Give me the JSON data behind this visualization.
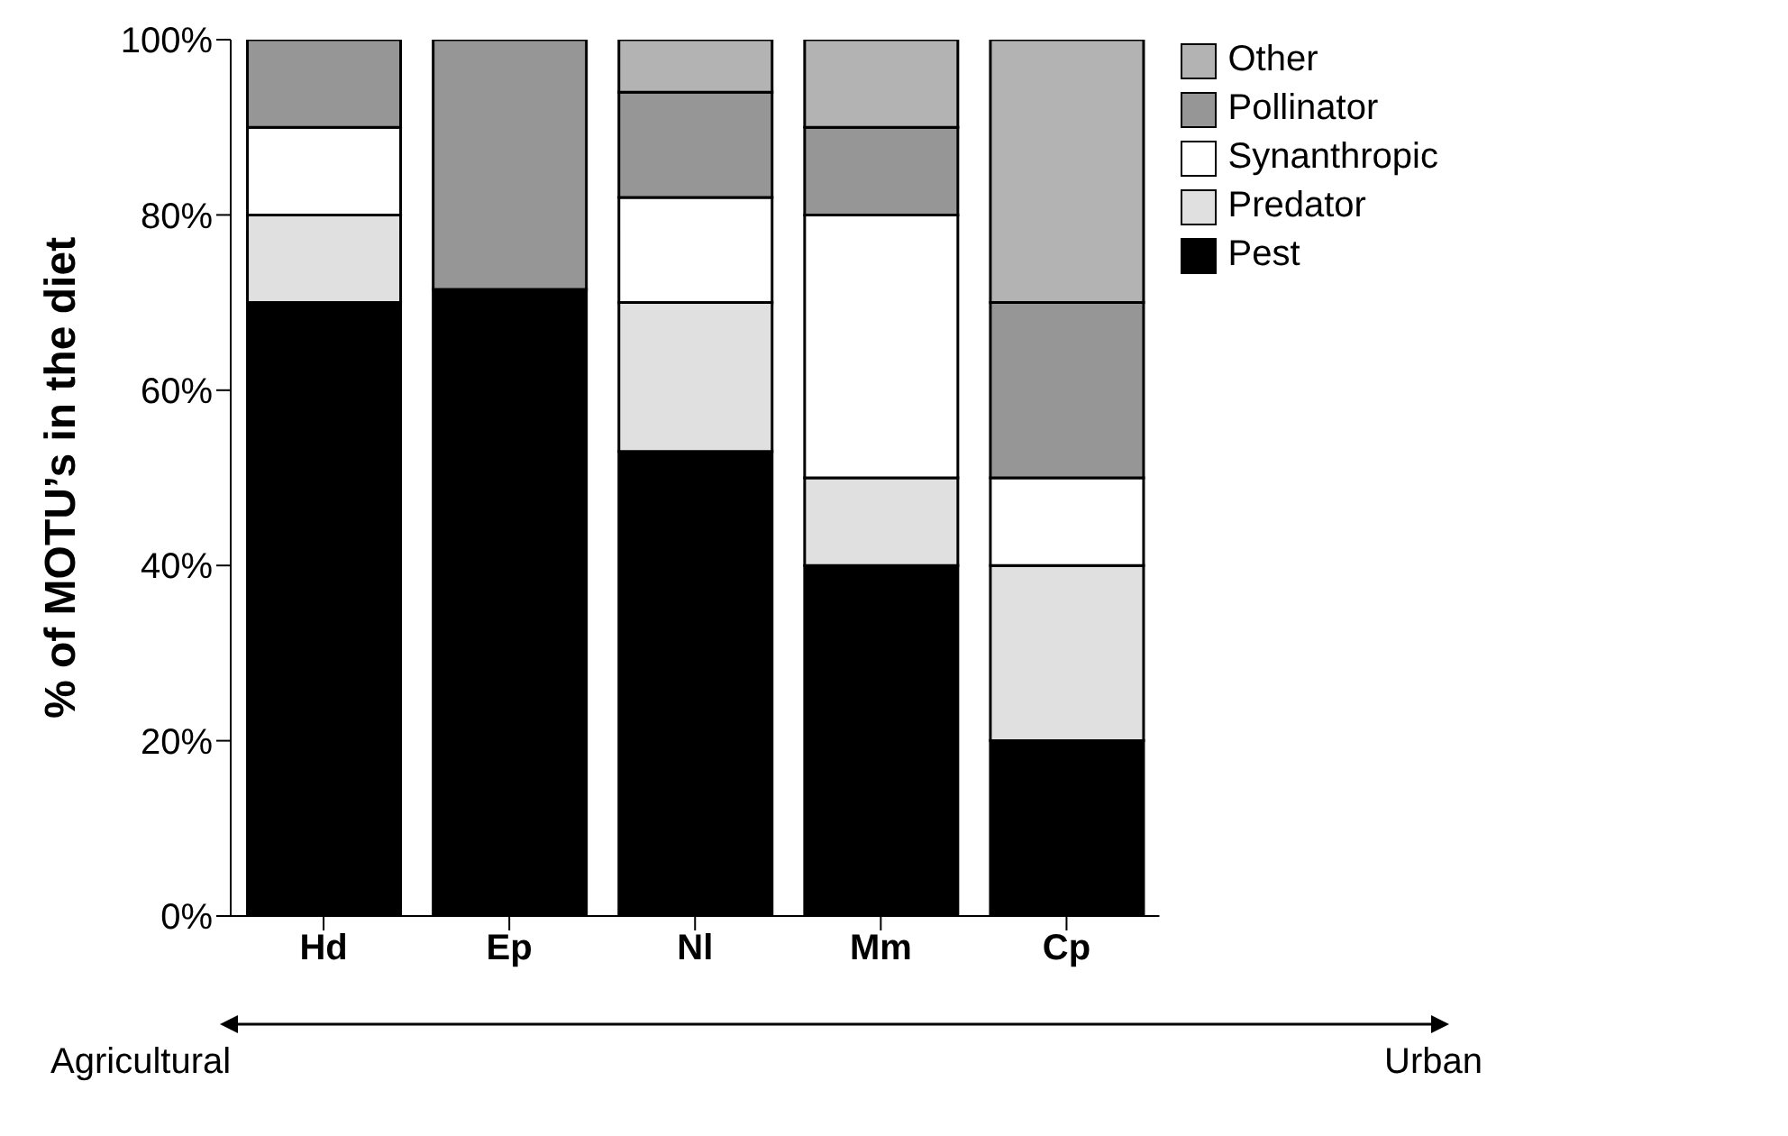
{
  "chart_data": {
    "type": "bar",
    "stacked": true,
    "ylabel": "% of MOTU’s in the diet",
    "categories": [
      "Hd",
      "Ep",
      "Nl",
      "Mm",
      "Cp"
    ],
    "series": [
      {
        "name": "Pest",
        "color": "#000000",
        "values": [
          70,
          71.5,
          53,
          40,
          20
        ]
      },
      {
        "name": "Predator",
        "color": "#e0e0e0",
        "values": [
          10,
          0,
          17,
          10,
          20
        ]
      },
      {
        "name": "Synanthropic",
        "color": "#ffffff",
        "values": [
          10,
          0,
          12,
          30,
          10
        ]
      },
      {
        "name": "Pollinator",
        "color": "#969696",
        "values": [
          10,
          28.5,
          12,
          10,
          20
        ]
      },
      {
        "name": "Other",
        "color": "#b3b3b3",
        "values": [
          0,
          0,
          6,
          10,
          30
        ]
      }
    ],
    "ylim": [
      0,
      100
    ],
    "yticks": [
      {
        "value": 0,
        "label": "0%"
      },
      {
        "value": 20,
        "label": "20%"
      },
      {
        "value": 40,
        "label": "40%"
      },
      {
        "value": 60,
        "label": "60%"
      },
      {
        "value": 80,
        "label": "80%"
      },
      {
        "value": 100,
        "label": "100%"
      }
    ],
    "grid": false,
    "legend": "top right",
    "annotations": [
      "Agricultural",
      "Urban"
    ]
  }
}
